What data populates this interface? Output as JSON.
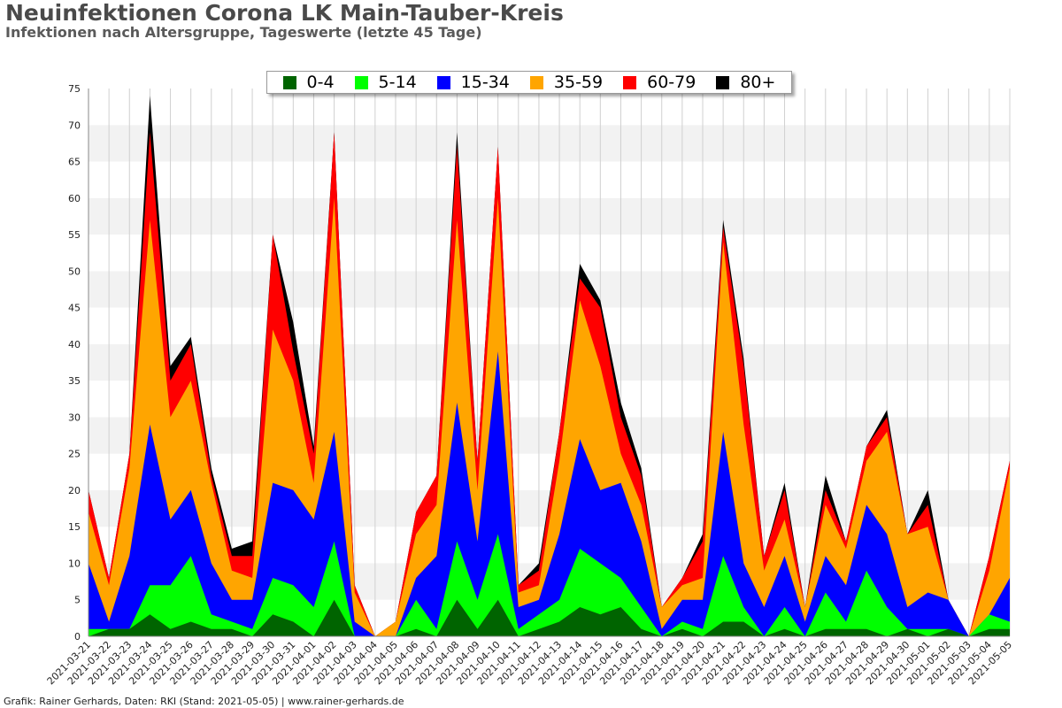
{
  "header": {
    "title": "Neuinfektionen Corona LK Main-Tauber-Kreis",
    "subtitle": "Infektionen nach Altersgruppe, Tageswerte (letzte 45 Tage)"
  },
  "footer": {
    "text": "Grafik: Rainer Gerhards, Daten: RKI (Stand: 2021-05-05) | www.rainer-gerhards.de"
  },
  "chart_data": {
    "type": "area",
    "stacked": true,
    "grid": true,
    "legend_position": "top-center",
    "ylim": [
      0,
      75
    ],
    "yticks": [
      0,
      5,
      10,
      15,
      20,
      25,
      30,
      35,
      40,
      45,
      50,
      55,
      60,
      65,
      70,
      75
    ],
    "x": [
      "2021-03-21",
      "2021-03-22",
      "2021-03-23",
      "2021-03-24",
      "2021-03-25",
      "2021-03-26",
      "2021-03-27",
      "2021-03-28",
      "2021-03-29",
      "2021-03-30",
      "2021-03-31",
      "2021-04-01",
      "2021-04-02",
      "2021-04-03",
      "2021-04-04",
      "2021-04-05",
      "2021-04-06",
      "2021-04-07",
      "2021-04-08",
      "2021-04-09",
      "2021-04-10",
      "2021-04-11",
      "2021-04-12",
      "2021-04-13",
      "2021-04-14",
      "2021-04-15",
      "2021-04-16",
      "2021-04-17",
      "2021-04-18",
      "2021-04-19",
      "2021-04-20",
      "2021-04-21",
      "2021-04-22",
      "2021-04-23",
      "2021-04-24",
      "2021-04-25",
      "2021-04-26",
      "2021-04-27",
      "2021-04-28",
      "2021-04-29",
      "2021-04-30",
      "2021-05-01",
      "2021-05-02",
      "2021-05-03",
      "2021-05-04",
      "2021-05-05"
    ],
    "series": [
      {
        "name": "0-4",
        "color": "#006400",
        "values": [
          0,
          1,
          1,
          3,
          1,
          2,
          1,
          1,
          0,
          3,
          2,
          0,
          5,
          0,
          0,
          0,
          1,
          0,
          5,
          1,
          5,
          0,
          1,
          2,
          4,
          3,
          4,
          1,
          0,
          1,
          0,
          2,
          2,
          0,
          1,
          0,
          1,
          1,
          1,
          0,
          1,
          0,
          1,
          0,
          1,
          1
        ]
      },
      {
        "name": "5-14",
        "color": "#00ff00",
        "values": [
          1,
          0,
          0,
          4,
          6,
          9,
          2,
          1,
          1,
          5,
          5,
          4,
          8,
          0,
          0,
          0,
          4,
          1,
          8,
          4,
          9,
          1,
          2,
          3,
          8,
          7,
          4,
          3,
          0,
          1,
          1,
          9,
          2,
          0,
          3,
          0,
          5,
          1,
          8,
          4,
          0,
          1,
          0,
          0,
          2,
          1
        ]
      },
      {
        "name": "15-34",
        "color": "#0000ff",
        "values": [
          9,
          1,
          10,
          22,
          9,
          9,
          7,
          3,
          4,
          13,
          13,
          12,
          15,
          2,
          0,
          0,
          3,
          10,
          19,
          8,
          25,
          3,
          2,
          9,
          15,
          10,
          13,
          9,
          1,
          3,
          4,
          17,
          6,
          4,
          7,
          2,
          5,
          5,
          9,
          10,
          3,
          5,
          4,
          0,
          0,
          6
        ]
      },
      {
        "name": "35-59",
        "color": "#ffa500",
        "values": [
          7,
          5,
          12,
          28,
          14,
          15,
          11,
          4,
          3,
          21,
          15,
          5,
          32,
          4,
          0,
          2,
          6,
          7,
          25,
          7,
          21,
          2,
          2,
          10,
          19,
          17,
          4,
          5,
          3,
          2,
          3,
          26,
          19,
          5,
          5,
          2,
          7,
          5,
          6,
          14,
          10,
          9,
          0,
          0,
          6,
          15
        ]
      },
      {
        "name": "60-79",
        "color": "#ff0000",
        "values": [
          3,
          1,
          2,
          12,
          5,
          5,
          1,
          2,
          3,
          13,
          4,
          4,
          9,
          1,
          0,
          0,
          3,
          4,
          10,
          4,
          7,
          1,
          2,
          4,
          3,
          8,
          5,
          4,
          0,
          1,
          5,
          2,
          8,
          2,
          4,
          0,
          2,
          1,
          2,
          2,
          0,
          3,
          0,
          0,
          2,
          1
        ]
      },
      {
        "name": "80+",
        "color": "#000000",
        "values": [
          0,
          0,
          0,
          5,
          2,
          1,
          1,
          1,
          2,
          0,
          4,
          1,
          0,
          0,
          0,
          0,
          0,
          0,
          2,
          0,
          0,
          0,
          1,
          0,
          2,
          1,
          2,
          1,
          0,
          0,
          1,
          1,
          1,
          0,
          1,
          0,
          2,
          0,
          0,
          1,
          0,
          2,
          0,
          0,
          0,
          0
        ]
      }
    ]
  }
}
